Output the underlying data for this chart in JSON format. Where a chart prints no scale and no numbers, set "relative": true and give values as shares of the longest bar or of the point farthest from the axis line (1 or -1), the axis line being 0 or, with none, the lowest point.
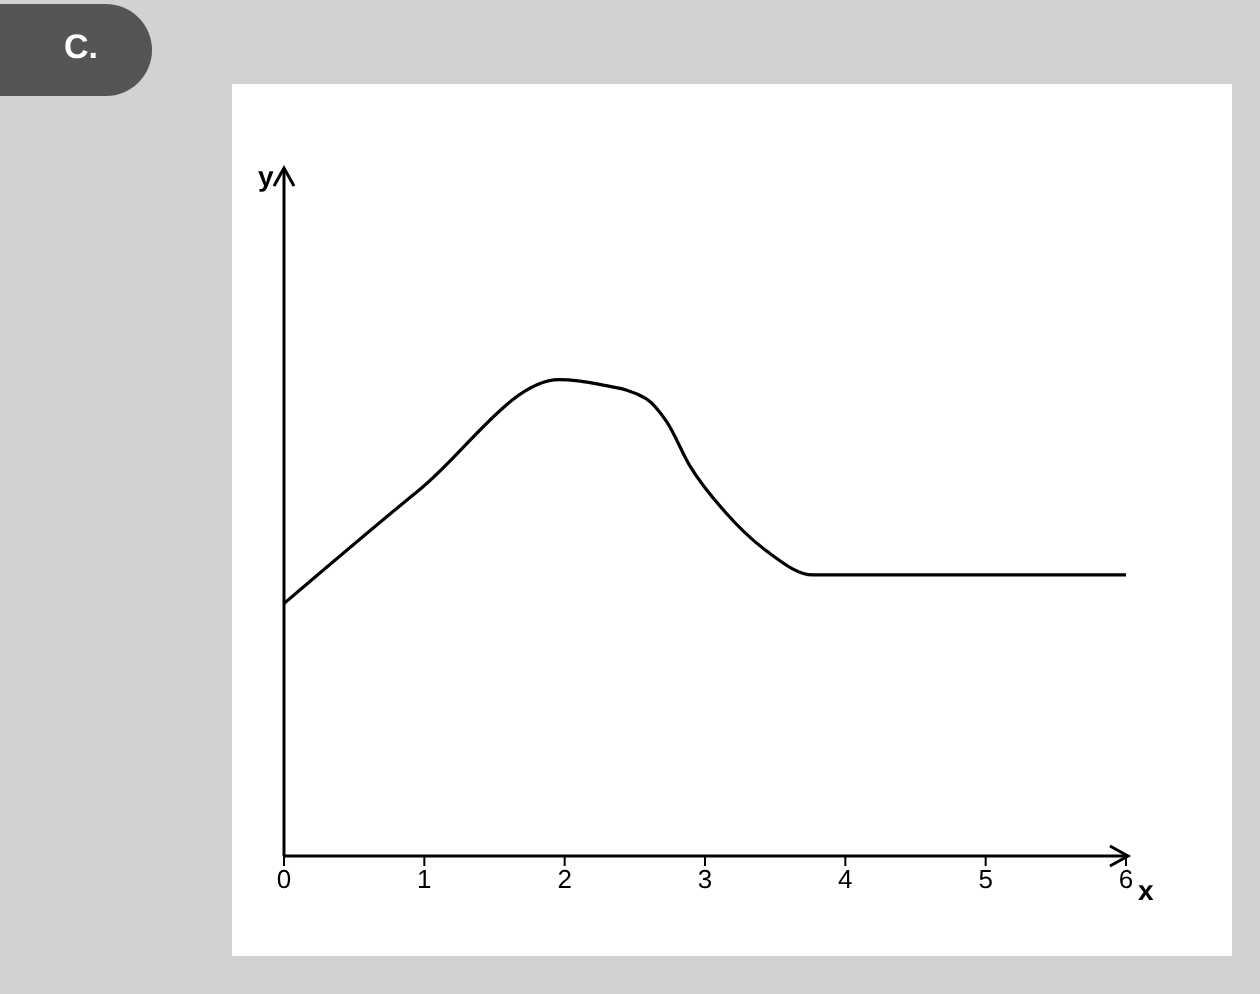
{
  "chart_data": {
    "type": "line",
    "relative": true,
    "xlabel": "x",
    "annotations": [
      "C.",
      "y"
    ],
    "x": [
      0,
      0.97,
      1.96,
      2.25,
      2.58,
      2.73,
      2.89,
      3.15,
      3.44,
      3.77,
      6
    ],
    "series": [
      {
        "color": "#000000",
        "values": [
          0.53,
          0.77,
          1,
          0.99,
          0.96,
          0.91,
          0.82,
          0.72,
          0.64,
          0.59,
          0.59
        ]
      }
    ],
    "xlim": [
      0,
      6
    ],
    "xticks": [
      0,
      1,
      2,
      3,
      4,
      5,
      6
    ],
    "marker": "none",
    "line_style": "solid"
  }
}
